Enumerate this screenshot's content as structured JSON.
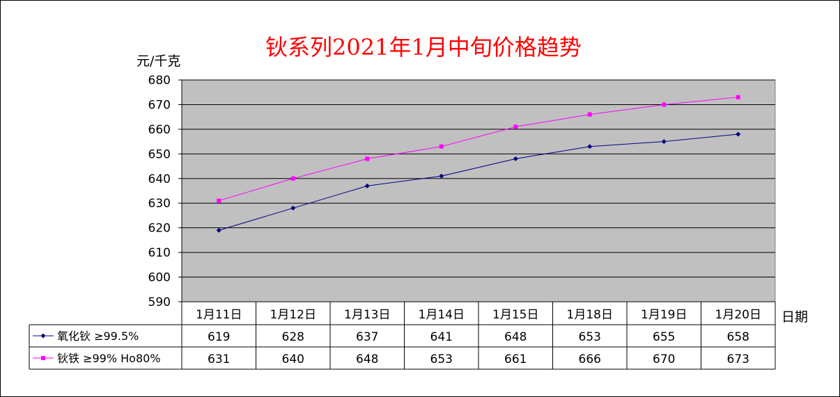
{
  "chart_data": {
    "type": "line",
    "title": "钬系列2021年1月中旬价格趋势",
    "ylabel": "元/千克",
    "xlabel": "日期",
    "categories": [
      "1月11日",
      "1月12日",
      "1月13日",
      "1月14日",
      "1月15日",
      "1月18日",
      "1月19日",
      "1月20日"
    ],
    "ylim": [
      590,
      680
    ],
    "yticks": [
      590,
      600,
      610,
      620,
      630,
      640,
      650,
      660,
      670,
      680
    ],
    "grid": true,
    "legend": "data-table-left",
    "plot_background": "#c0c0c0",
    "series": [
      {
        "name": "氧化钬 ≥99.5%",
        "color": "#000080",
        "marker": "diamond",
        "values": [
          619,
          628,
          637,
          641,
          648,
          653,
          655,
          658
        ]
      },
      {
        "name": "钬铁 ≥99% Ho80%",
        "color": "#ff00ff",
        "marker": "square",
        "values": [
          631,
          640,
          648,
          653,
          661,
          666,
          670,
          673
        ]
      }
    ]
  }
}
